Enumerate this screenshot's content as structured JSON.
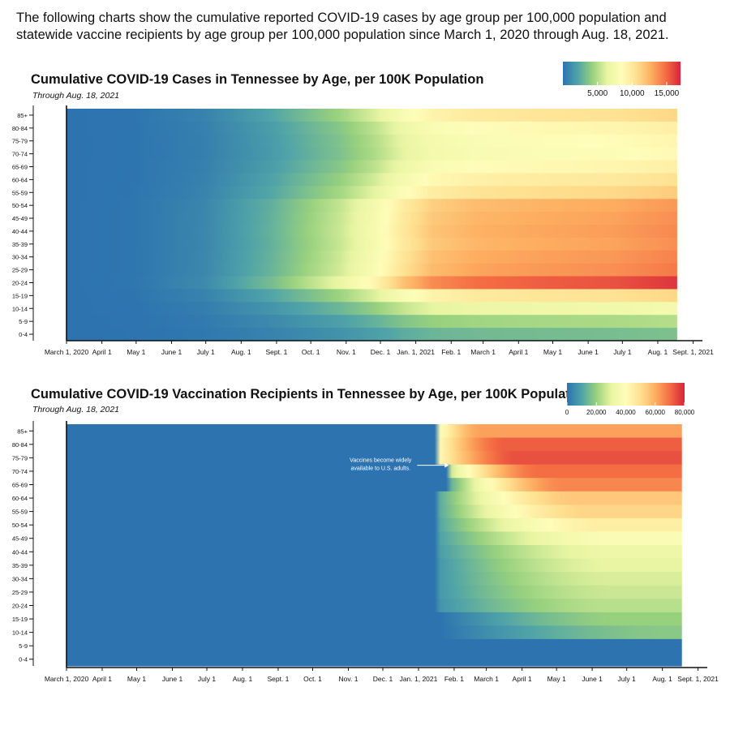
{
  "intro": "The following charts show the cumulative reported COVID-19 cases by age group per 100,000 population and statewide vaccine recipients by age group per 100,000 population since March 1, 2020 through Aug. 18, 2021.",
  "colors": [
    "#2c73b0",
    "#4fa3a8",
    "#98d17e",
    "#e9f5a2",
    "#fefdb9",
    "#fee090",
    "#fdae61",
    "#f46d43",
    "#d6253a"
  ],
  "chart_data": [
    {
      "type": "heatmap",
      "title": "Cumulative COVID-19 Cases in Tennessee by Age, per 100K Population",
      "subtitle": "Through Aug. 18, 2021",
      "y_categories": [
        "85+",
        "80-84",
        "75-79",
        "70-74",
        "65-69",
        "60-64",
        "55-59",
        "50-54",
        "45-49",
        "40-44",
        "35-39",
        "30-34",
        "25-29",
        "20-24",
        "15-19",
        "10-14",
        "5-9",
        "0-4"
      ],
      "x_ticks": [
        {
          "label": "March 1, 2020",
          "day": 0
        },
        {
          "label": "April 1",
          "day": 31
        },
        {
          "label": "May 1",
          "day": 61
        },
        {
          "label": "June 1",
          "day": 92
        },
        {
          "label": "July 1",
          "day": 122
        },
        {
          "label": "Aug. 1",
          "day": 153
        },
        {
          "label": "Sept. 1",
          "day": 184
        },
        {
          "label": "Oct. 1",
          "day": 214
        },
        {
          "label": "Nov. 1",
          "day": 245
        },
        {
          "label": "Dec. 1",
          "day": 275
        },
        {
          "label": "Jan. 1, 2021",
          "day": 306
        },
        {
          "label": "Feb. 1",
          "day": 337
        },
        {
          "label": "March 1",
          "day": 365
        },
        {
          "label": "April 1",
          "day": 396
        },
        {
          "label": "May 1",
          "day": 426
        },
        {
          "label": "June 1",
          "day": 457
        },
        {
          "label": "July 1",
          "day": 487
        },
        {
          "label": "Aug. 1",
          "day": 518
        },
        {
          "label": "Sept. 1, 2021",
          "day": 549
        }
      ],
      "x_range_days": [
        0,
        550
      ],
      "data_end_day": 535,
      "value_range": [
        0,
        17000
      ],
      "legend": {
        "ticks": [
          {
            "label": "5,000",
            "value": 5000
          },
          {
            "label": "10,000",
            "value": 10000
          },
          {
            "label": "15,000",
            "value": 15000
          }
        ]
      },
      "final_values": [
        11000,
        9500,
        9000,
        8800,
        9500,
        10500,
        11500,
        13500,
        13800,
        14000,
        13800,
        14200,
        14500,
        16500,
        11000,
        7500,
        5000,
        3500
      ],
      "curve_days": [
        0,
        60,
        120,
        180,
        240,
        270,
        295,
        320,
        360,
        420,
        480,
        535
      ],
      "curve_fractions": [
        0,
        0.01,
        0.06,
        0.2,
        0.4,
        0.55,
        0.72,
        0.84,
        0.9,
        0.93,
        0.95,
        1.0
      ]
    },
    {
      "type": "heatmap",
      "title": "Cumulative COVID-19 Vaccination Recipients in Tennessee by Age, per 100K Population",
      "subtitle": "Through Aug. 18, 2021",
      "y_categories": [
        "85+",
        "80-84",
        "75-79",
        "70-74",
        "65-69",
        "60-64",
        "55-59",
        "50-54",
        "45-49",
        "40-44",
        "35-39",
        "30-34",
        "25-29",
        "20-24",
        "15-19",
        "10-14",
        "5-9",
        "0-4"
      ],
      "x_ticks": [
        {
          "label": "March 1, 2020",
          "day": 0
        },
        {
          "label": "April 1",
          "day": 31
        },
        {
          "label": "May 1",
          "day": 61
        },
        {
          "label": "June 1",
          "day": 92
        },
        {
          "label": "July 1",
          "day": 122
        },
        {
          "label": "Aug. 1",
          "day": 153
        },
        {
          "label": "Sept. 1",
          "day": 184
        },
        {
          "label": "Oct. 1",
          "day": 214
        },
        {
          "label": "Nov. 1",
          "day": 245
        },
        {
          "label": "Dec. 1",
          "day": 275
        },
        {
          "label": "Jan. 1, 2021",
          "day": 306
        },
        {
          "label": "Feb. 1",
          "day": 337
        },
        {
          "label": "March 1",
          "day": 365
        },
        {
          "label": "April 1",
          "day": 396
        },
        {
          "label": "May 1",
          "day": 426
        },
        {
          "label": "June 1",
          "day": 457
        },
        {
          "label": "July 1",
          "day": 487
        },
        {
          "label": "Aug. 1",
          "day": 518
        },
        {
          "label": "Sept. 1, 2021",
          "day": 549
        }
      ],
      "x_range_days": [
        0,
        550
      ],
      "data_end_day": 535,
      "value_range": [
        0,
        80000
      ],
      "legend": {
        "ticks": [
          {
            "label": "0",
            "value": 0
          },
          {
            "label": "20,000",
            "value": 20000
          },
          {
            "label": "40,000",
            "value": 40000
          },
          {
            "label": "60,000",
            "value": 60000
          },
          {
            "label": "80,000",
            "value": 80000
          }
        ]
      },
      "start_days": [
        325,
        325,
        325,
        333,
        333,
        325,
        325,
        325,
        325,
        325,
        325,
        325,
        325,
        325,
        325,
        325,
        600,
        600
      ],
      "start_values": [
        38000,
        42000,
        42000,
        25000,
        12000,
        12000,
        12000,
        11000,
        10000,
        9000,
        8000,
        8000,
        8000,
        7000,
        0,
        0,
        0,
        0
      ],
      "rise_end_days": [
        360,
        380,
        390,
        410,
        430,
        440,
        450,
        460,
        470,
        470,
        470,
        470,
        470,
        470,
        480,
        520,
        600,
        600
      ],
      "final_values": [
        62000,
        72000,
        74000,
        70000,
        66000,
        55000,
        52000,
        45000,
        38000,
        32000,
        30000,
        28000,
        26000,
        24000,
        20000,
        18000,
        0,
        0
      ],
      "annotation": {
        "text_line1": "Vaccines become widely",
        "text_line2": "available to U.S. adults.",
        "day": 333,
        "row": "70-74"
      }
    }
  ]
}
